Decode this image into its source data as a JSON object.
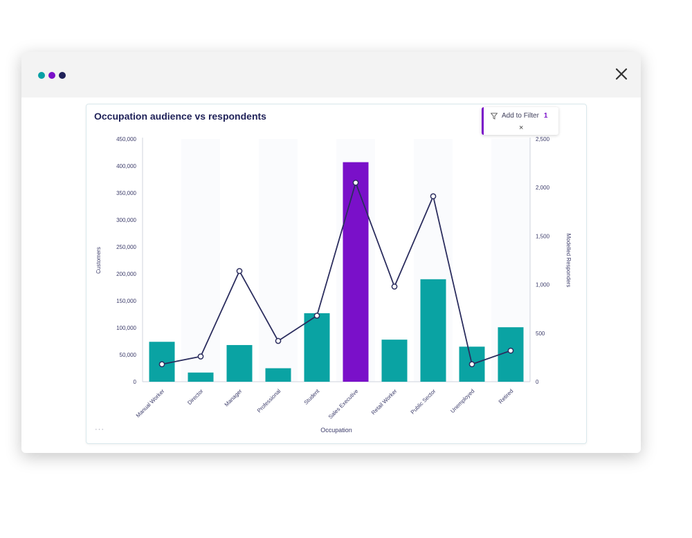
{
  "window": {
    "dots": [
      {
        "name": "teal",
        "color": "#07a0a5"
      },
      {
        "name": "purple",
        "color": "#7a10c9"
      },
      {
        "name": "navy",
        "color": "#1f2158"
      }
    ],
    "close_icon": "close-icon"
  },
  "card": {
    "title": "Occupation audience vs respondents",
    "more": "···"
  },
  "filter": {
    "icon": "funnel-icon",
    "label": "Add to Filter",
    "count": "1",
    "close": "×"
  },
  "colors": {
    "bar": "#0aa3a3",
    "bar_selected": "#7a10c9",
    "line": "#2b2d5e",
    "text": "#3c3c6a"
  },
  "chart_data": {
    "type": "bar",
    "title": "Occupation audience vs respondents",
    "xlabel": "Occupation",
    "categories": [
      "Manual Worker",
      "Director",
      "Manager",
      "Professional",
      "Student",
      "Sales Executive",
      "Retail Worker",
      "Public Sector",
      "Unemployed",
      "Retired"
    ],
    "series": [
      {
        "name": "Customers",
        "type": "bar",
        "axis": "left",
        "values": [
          74000,
          17000,
          68000,
          25000,
          127000,
          407000,
          78000,
          190000,
          65000,
          101000
        ]
      },
      {
        "name": "Modelled Responders",
        "type": "line",
        "axis": "right",
        "values": [
          180,
          260,
          1140,
          420,
          680,
          2050,
          980,
          1910,
          180,
          320
        ]
      }
    ],
    "selected_index": 5,
    "y_left": {
      "label": "Customers",
      "range": [
        0,
        450000
      ],
      "ticks": [
        "0",
        "50,000",
        "100,000",
        "150,000",
        "200,000",
        "250,000",
        "300,000",
        "350,000",
        "400,000",
        "450,000"
      ]
    },
    "y_right": {
      "label": "Modelled Responders",
      "range": [
        0,
        2500
      ],
      "ticks": [
        "0",
        "500",
        "1,000",
        "1,500",
        "2,000",
        "2,500"
      ]
    },
    "grid": "vertical bands"
  }
}
